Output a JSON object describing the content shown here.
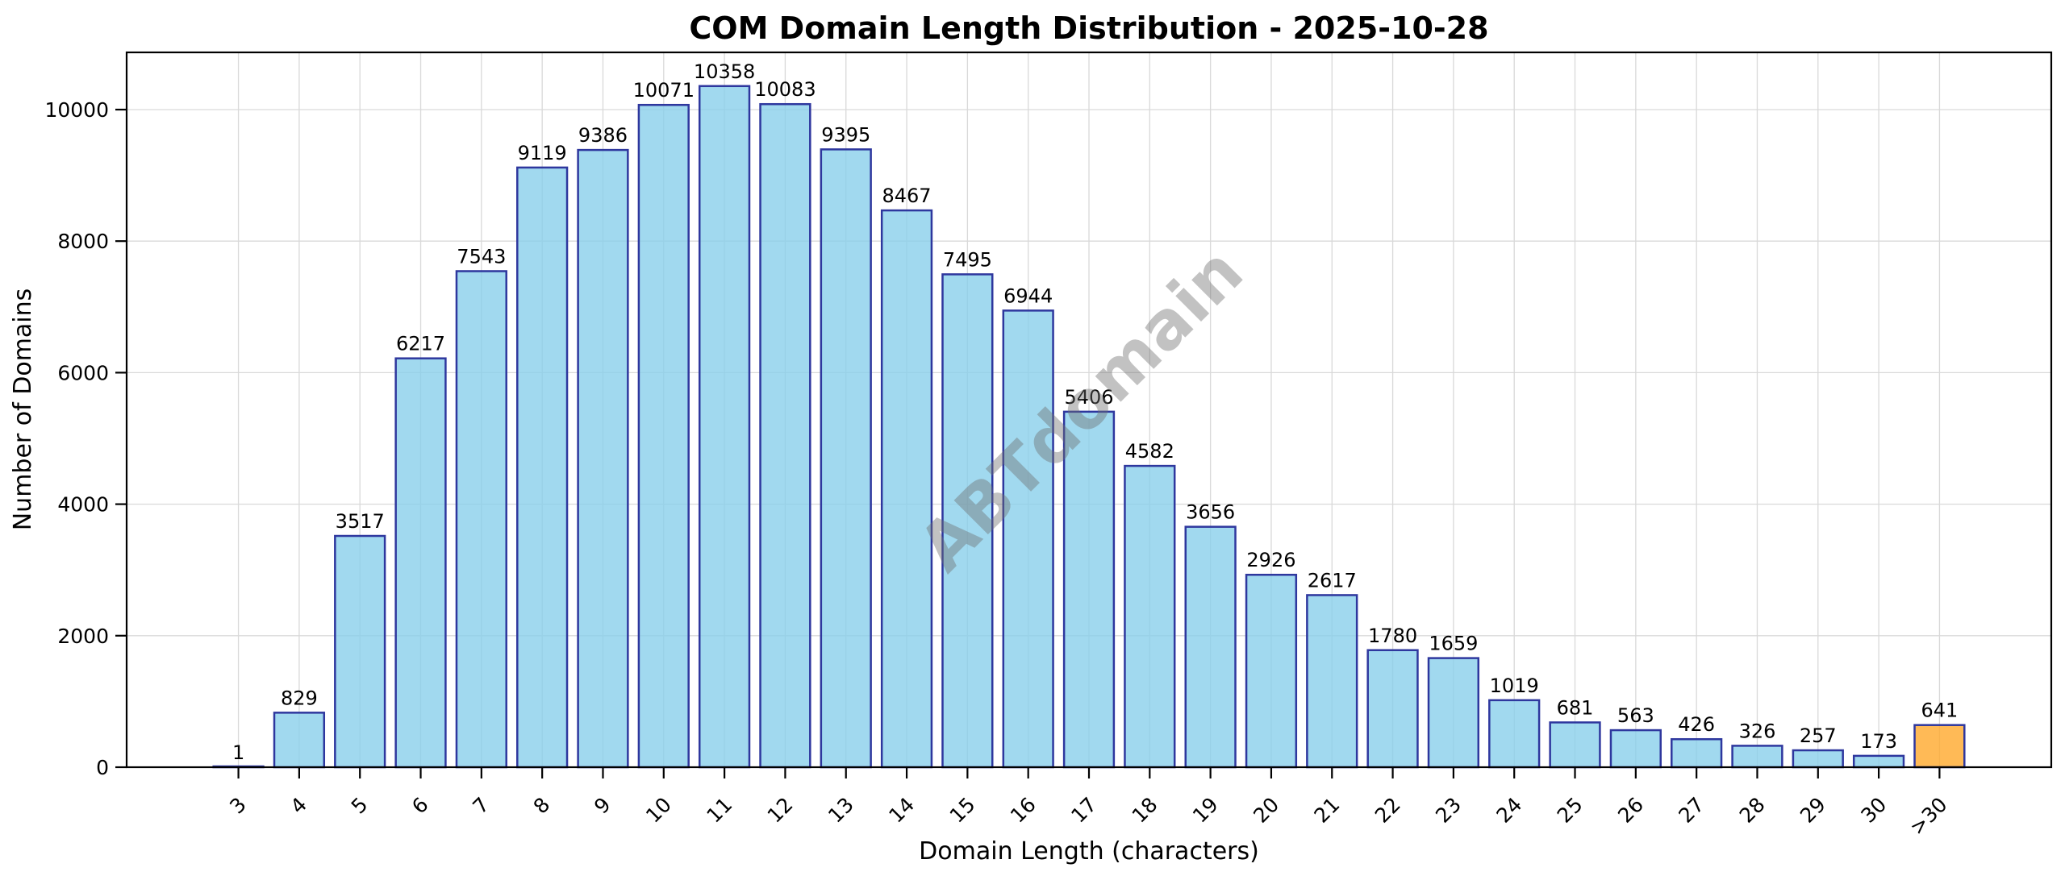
{
  "chart_data": {
    "type": "bar",
    "title": "COM Domain Length Distribution - 2025-10-28",
    "xlabel": "Domain Length (characters)",
    "ylabel": "Number of Domains",
    "categories": [
      "3",
      "4",
      "5",
      "6",
      "7",
      "8",
      "9",
      "10",
      "11",
      "12",
      "13",
      "14",
      "15",
      "16",
      "17",
      "18",
      "19",
      "20",
      "21",
      "22",
      "23",
      "24",
      "25",
      "26",
      "27",
      "28",
      "29",
      "30",
      ">30"
    ],
    "values": [
      1,
      829,
      3517,
      6217,
      7543,
      9119,
      9386,
      10071,
      10358,
      10083,
      9395,
      8467,
      7495,
      6944,
      5406,
      4582,
      3656,
      2926,
      2617,
      1780,
      1659,
      1019,
      681,
      563,
      426,
      326,
      257,
      173,
      641
    ],
    "bar_labels": [
      "1",
      "829",
      "3517",
      "6217",
      "7543",
      "9119",
      "9386",
      "10071",
      "10358",
      "10083",
      "9395",
      "8467",
      "7495",
      "6944",
      "5406",
      "4582",
      "3656",
      "2926",
      "2617",
      "1780",
      "1659",
      "1019",
      "681",
      "563",
      "426",
      "326",
      "257",
      "173",
      "641"
    ],
    "yticks": [
      0,
      2000,
      4000,
      6000,
      8000,
      10000
    ],
    "ytick_labels": [
      "0",
      "2000",
      "4000",
      "6000",
      "8000",
      "10000"
    ],
    "ylim": [
      0,
      10870
    ],
    "grid": true,
    "legend": "none",
    "colors": {
      "bar_fill": "#87CEEB",
      "bar_opacity": 0.78,
      "highlight_fill": "#FFA726",
      "edge": "#2E379E",
      "grid_line": "#D9D9D9",
      "spine": "#000000",
      "text": "#000000",
      "watermark": "#6F6F6F"
    },
    "highlight_index": 28,
    "watermark": "ABTdomain"
  }
}
